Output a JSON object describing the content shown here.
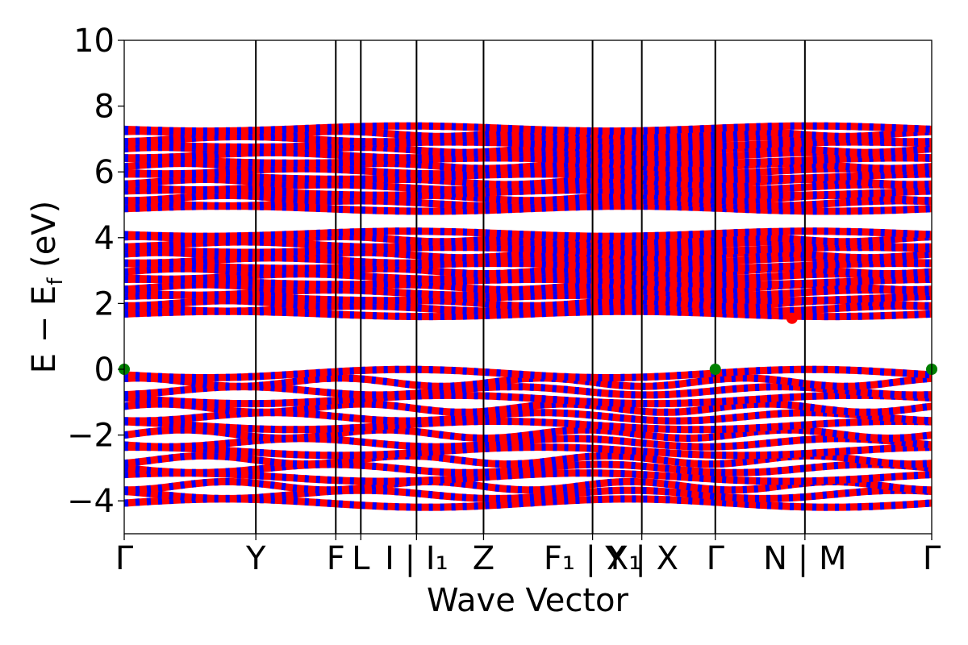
{
  "chart_data": {
    "type": "line",
    "title": "",
    "xlabel": "Wave Vector",
    "ylabel": "E − E",
    "ylabel_subscript": "f",
    "ylabel_unit": " (eV)",
    "ylim": [
      -5,
      10
    ],
    "yticks": [
      -4,
      -2,
      0,
      2,
      4,
      6,
      8,
      10
    ],
    "ytick_labels": [
      "−4",
      "−2",
      "0",
      "2",
      "4",
      "6",
      "8",
      "10"
    ],
    "x_range": [
      0,
      1
    ],
    "grid": false,
    "high_symmetry_points": [
      {
        "label": "Γ",
        "x": 0.0
      },
      {
        "label": "Y",
        "x": 0.163
      },
      {
        "label": "F",
        "x": 0.262
      },
      {
        "label": "L",
        "x": 0.293
      },
      {
        "label": "I | I₁",
        "x": 0.362
      },
      {
        "label": "Z",
        "x": 0.445
      },
      {
        "label": "F₁ | X₁",
        "x": 0.58
      },
      {
        "label": "Y | X",
        "x": 0.641
      },
      {
        "label": "Γ",
        "x": 0.732
      },
      {
        "label": "N | M",
        "x": 0.843
      },
      {
        "label": "Γ",
        "x": 1.0
      }
    ],
    "band_colors": {
      "spin_up": "#ff0000",
      "spin_down": "#0000ff"
    },
    "band_groups": [
      {
        "name": "valence",
        "ymin": -4.2,
        "ymax": 0.0
      },
      {
        "name": "conduction_lower",
        "ymin": 1.6,
        "ymax": 4.2
      },
      {
        "name": "conduction_upper",
        "ymin": 4.8,
        "ymax": 7.4
      }
    ],
    "extrema_points": [
      {
        "type": "VBM",
        "color": "#008000",
        "points": [
          [
            0.0,
            0.0
          ],
          [
            0.732,
            0.0
          ],
          [
            1.0,
            0.0
          ]
        ]
      },
      {
        "type": "CBM",
        "color": "#ff0000",
        "points": [
          [
            0.827,
            1.55
          ]
        ]
      }
    ]
  }
}
